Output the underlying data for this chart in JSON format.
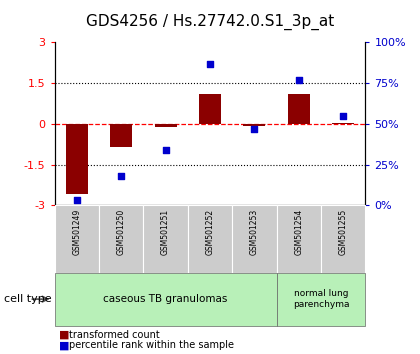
{
  "title": "GDS4256 / Hs.27742.0.S1_3p_at",
  "samples": [
    "GSM501249",
    "GSM501250",
    "GSM501251",
    "GSM501252",
    "GSM501253",
    "GSM501254",
    "GSM501255"
  ],
  "transformed_count": [
    -2.6,
    -0.85,
    -0.12,
    1.1,
    -0.08,
    1.1,
    0.05
  ],
  "percentile_rank": [
    3,
    18,
    34,
    87,
    47,
    77,
    55
  ],
  "ylim_left": [
    -3,
    3
  ],
  "ylim_right": [
    0,
    100
  ],
  "yticks_left": [
    -3,
    -1.5,
    0,
    1.5,
    3
  ],
  "yticks_right": [
    0,
    25,
    50,
    75,
    100
  ],
  "ytick_labels_left": [
    "-3",
    "-1.5",
    "0",
    "1.5",
    "3"
  ],
  "ytick_labels_right": [
    "0%",
    "25%",
    "50%",
    "75%",
    "100%"
  ],
  "hlines": [
    0,
    1.5,
    -1.5
  ],
  "hline_styles": [
    "dashed",
    "dotted",
    "dotted"
  ],
  "hline_colors": [
    "red",
    "black",
    "black"
  ],
  "bar_color": "#8B0000",
  "scatter_color": "#0000CD",
  "cell_type_groups": [
    {
      "label": "caseous TB granulomas",
      "start": 0,
      "end": 5,
      "color": "#b8f0b8"
    },
    {
      "label": "normal lung\nparenchyma",
      "start": 5,
      "end": 7,
      "color": "#b8f0b8"
    }
  ],
  "sample_box_color": "#cccccc",
  "cell_type_label": "cell type",
  "legend_bar_label": "transformed count",
  "legend_scatter_label": "percentile rank within the sample",
  "background_color": "#ffffff",
  "plot_bg": "#ffffff",
  "title_fontsize": 11,
  "tick_fontsize": 8,
  "legend_fontsize": 7,
  "bar_width": 0.5
}
